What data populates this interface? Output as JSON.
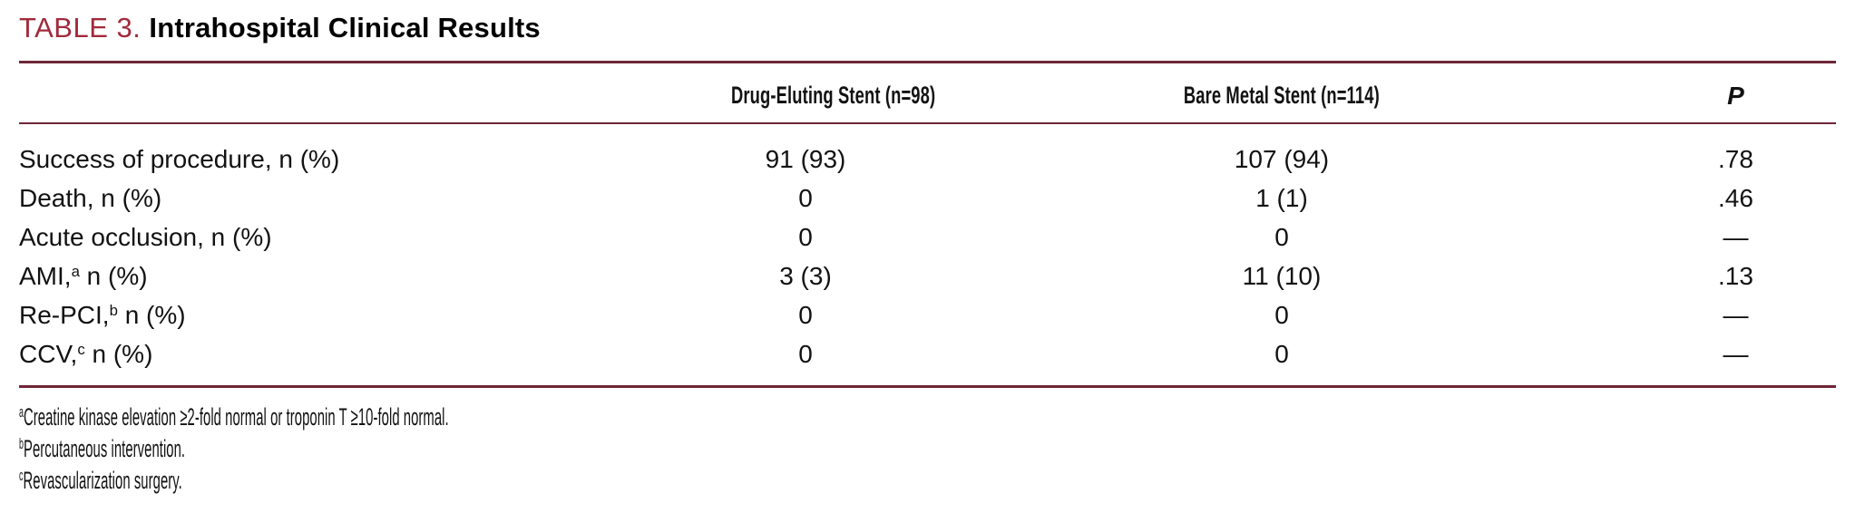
{
  "title": {
    "label": "TABLE 3.",
    "text": "Intrahospital Clinical Results"
  },
  "colors": {
    "title_accent": "#a12a3b",
    "rule": "#6e2636",
    "text": "#121212"
  },
  "table": {
    "columns": [
      "",
      "Drug-Eluting Stent (n=98)",
      "Bare Metal Stent (n=114)",
      "P"
    ],
    "rows": [
      {
        "label_pre": "Success of procedure, n (%)",
        "sup": "",
        "label_post": "",
        "values": [
          "91 (93)",
          "107 (94)",
          ".78"
        ]
      },
      {
        "label_pre": "Death, n (%)",
        "sup": "",
        "label_post": "",
        "values": [
          "0",
          "1 (1)",
          ".46"
        ]
      },
      {
        "label_pre": "Acute occlusion, n (%)",
        "sup": "",
        "label_post": "",
        "values": [
          "0",
          "0",
          "—"
        ]
      },
      {
        "label_pre": "AMI,",
        "sup": "a",
        "label_post": " n (%)",
        "values": [
          "3 (3)",
          "11 (10)",
          ".13"
        ]
      },
      {
        "label_pre": "Re-PCI,",
        "sup": "b",
        "label_post": " n (%)",
        "values": [
          "0",
          "0",
          "—"
        ]
      },
      {
        "label_pre": "CCV,",
        "sup": "c",
        "label_post": " n (%)",
        "values": [
          "0",
          "0",
          "—"
        ]
      }
    ]
  },
  "footnotes": [
    {
      "sup": "a",
      "text": "Creatine kinase elevation ≥2-fold normal or troponin T ≥10-fold normal."
    },
    {
      "sup": "b",
      "text": "Percutaneous intervention."
    },
    {
      "sup": "c",
      "text": "Revascularization surgery."
    }
  ]
}
